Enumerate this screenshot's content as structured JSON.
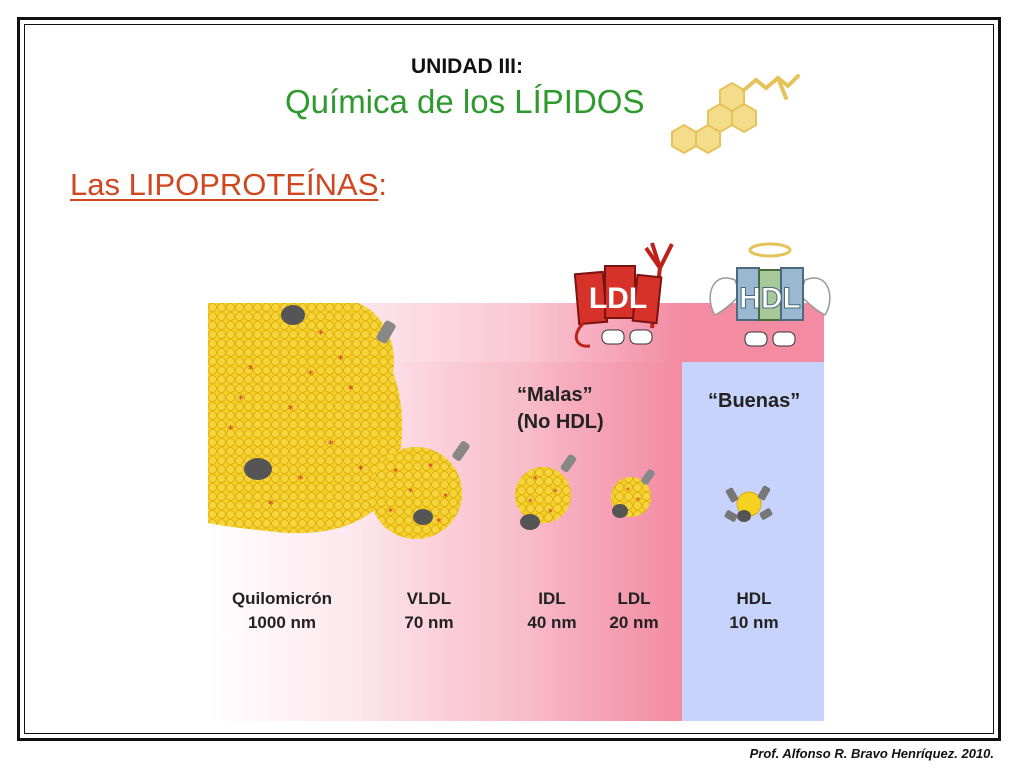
{
  "header": {
    "unit": "UNIDAD III:",
    "title": "Química de los LÍPIDOS"
  },
  "section": {
    "heading": "Las LIPOPROTEÍNAS",
    "colon": ":"
  },
  "groups": {
    "bad_line1": "“Malas”",
    "bad_line2": "(No HDL)",
    "good": "“Buenas”"
  },
  "mascots": {
    "ldl": "LDL",
    "hdl": "HDL"
  },
  "particles": [
    {
      "name": "Quilomicrón",
      "size": "1000 nm"
    },
    {
      "name": "VLDL",
      "size": "70 nm"
    },
    {
      "name": "IDL",
      "size": "40 nm"
    },
    {
      "name": "LDL",
      "size": "20 nm"
    },
    {
      "name": "HDL",
      "size": "10 nm"
    }
  ],
  "footer": "Prof. Alfonso R. Bravo Henríquez. 2010.",
  "colors": {
    "title_green": "#2e9a2e",
    "heading_orange": "#d2461f",
    "particle_yellow": "#f5d21f",
    "hdl_blue": "#c7d3fa",
    "ldl_pink": "#f38ca3"
  }
}
